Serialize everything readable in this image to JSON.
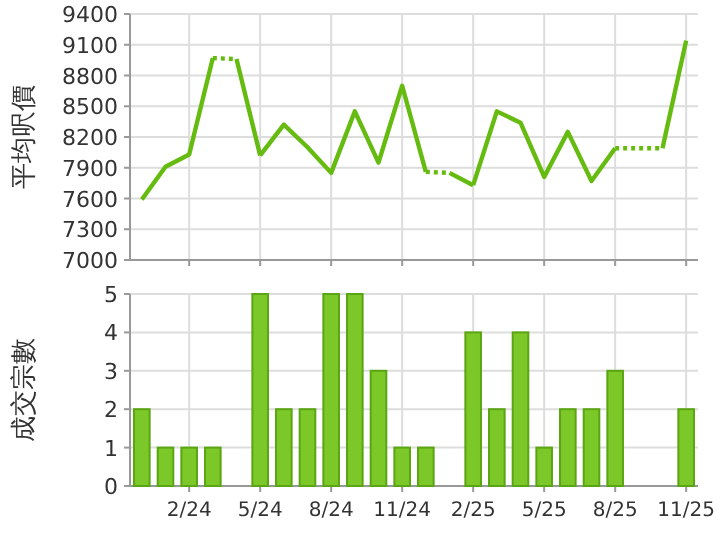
{
  "chart_data": [
    {
      "type": "line",
      "ylabel": "平均呎價",
      "categories": [
        null,
        null,
        null,
        null,
        null,
        null,
        null,
        null,
        null,
        null,
        null,
        null,
        null,
        null,
        null,
        null,
        null,
        null,
        null,
        null,
        null,
        null,
        null,
        null
      ],
      "ylim": [
        7000,
        9400
      ],
      "yticks": [
        7000,
        7300,
        7600,
        7900,
        8200,
        8500,
        8800,
        9100,
        9400
      ],
      "grid": true,
      "marker": "none",
      "series": [
        {
          "color": "#66bb11",
          "line_style": "solid",
          "values": [
            7590,
            7910,
            8030,
            8970,
            null,
            8020,
            8320,
            8100,
            7850,
            8450,
            7950,
            8700,
            7860,
            null,
            7730,
            8450,
            8340,
            7810,
            8250,
            7770,
            8090,
            null,
            null,
            null
          ]
        },
        {
          "color": "#66bb11",
          "line_style": "dotted",
          "values": [
            null,
            null,
            null,
            8970,
            8960,
            null,
            null,
            null,
            null,
            null,
            null,
            null,
            7860,
            7850,
            null,
            null,
            null,
            null,
            null,
            null,
            8090,
            8090,
            8090,
            null
          ]
        },
        {
          "color": "#66bb11",
          "line_style": "solid",
          "values": [
            null,
            null,
            null,
            null,
            8960,
            8020,
            null,
            null,
            null,
            null,
            null,
            null,
            null,
            7850,
            7730,
            null,
            null,
            null,
            null,
            null,
            null,
            null,
            8090,
            9140
          ]
        }
      ]
    },
    {
      "type": "bar",
      "ylabel": "成交宗數",
      "categories": [
        null,
        null,
        "2/24",
        null,
        null,
        "5/24",
        null,
        null,
        "8/24",
        null,
        null,
        "11/24",
        null,
        null,
        "2/25",
        null,
        null,
        "5/25",
        null,
        null,
        "8/25",
        null,
        null,
        "11/25"
      ],
      "values": [
        2,
        1,
        1,
        1,
        0,
        5,
        2,
        2,
        5,
        5,
        3,
        1,
        1,
        0,
        4,
        2,
        4,
        1,
        2,
        2,
        3,
        0,
        0,
        2
      ],
      "color": "#7cc828",
      "ylim": [
        0,
        5
      ],
      "yticks": [
        0,
        1,
        2,
        3,
        4,
        5
      ],
      "grid": true
    }
  ]
}
